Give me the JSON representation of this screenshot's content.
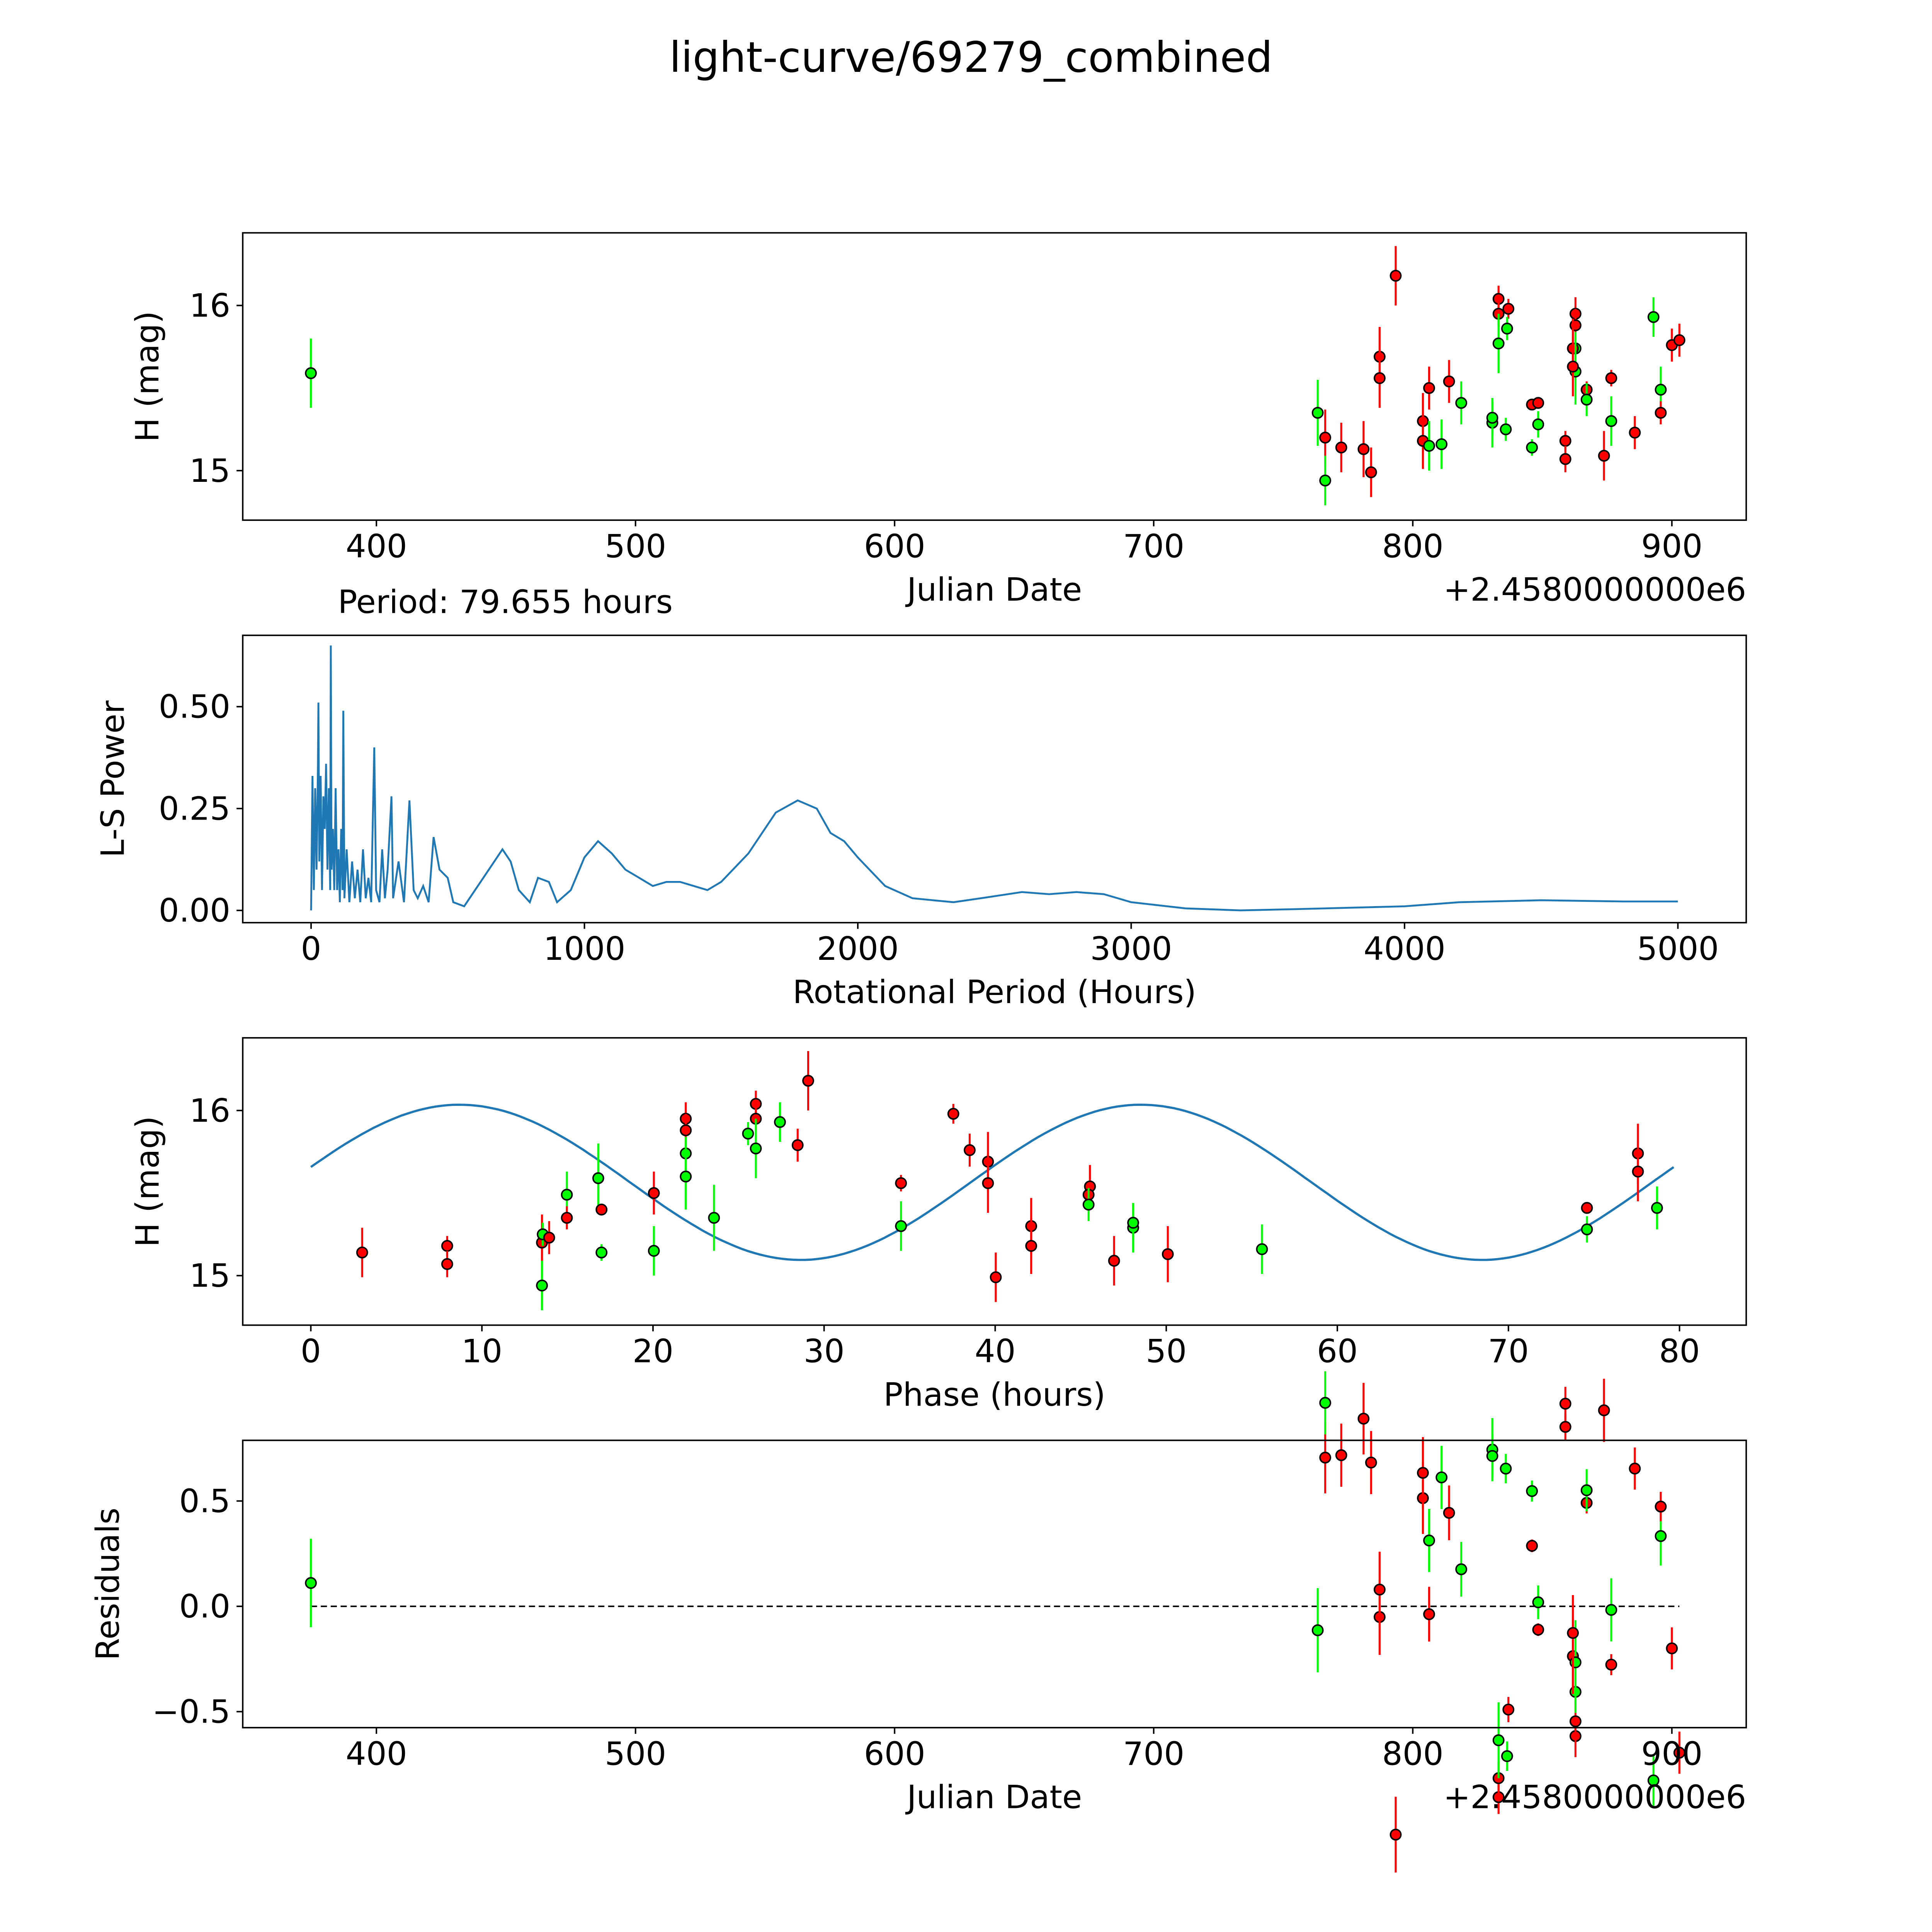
{
  "title": "light-curve/69279_combined",
  "colors": {
    "filter_a": "#00ff00",
    "filter_b": "#ff0000",
    "model": "#1f77b4",
    "periodogram": "#1f77b4"
  },
  "period_hours": 79.655,
  "model": {
    "mean": 15.565,
    "amplitude": 0.47,
    "peak_phase": 8.7,
    "harmonic_period": 39.83
  },
  "chart_data": [
    {
      "type": "scatter",
      "name": "light-curve",
      "xlabel": "Julian Date",
      "ylabel": "H (mag)",
      "offset_label": "+2.4580000000e6",
      "xlim": [
        348.4,
        928.7
      ],
      "ylim": [
        14.7,
        16.44
      ],
      "xticks": [
        400,
        500,
        600,
        700,
        800,
        900
      ],
      "yticks": [
        15,
        16
      ],
      "points": [
        [
          374.7,
          15.59,
          0.21,
          "g"
        ],
        [
          763.3,
          15.35,
          0.2,
          "g"
        ],
        [
          766.2,
          15.2,
          0.17,
          "r"
        ],
        [
          766.2,
          14.94,
          0.15,
          "g"
        ],
        [
          772.4,
          15.14,
          0.15,
          "r"
        ],
        [
          781.0,
          15.13,
          0.17,
          "r"
        ],
        [
          783.9,
          14.99,
          0.15,
          "r"
        ],
        [
          787.2,
          15.69,
          0.18,
          "r"
        ],
        [
          787.2,
          15.56,
          0.18,
          "r"
        ],
        [
          793.4,
          16.18,
          0.18,
          "r"
        ],
        [
          803.9,
          15.3,
          0.17,
          "r"
        ],
        [
          803.9,
          15.18,
          0.17,
          "r"
        ],
        [
          806.3,
          15.15,
          0.15,
          "g"
        ],
        [
          806.3,
          15.5,
          0.13,
          "r"
        ],
        [
          811.1,
          15.16,
          0.15,
          "g"
        ],
        [
          814.0,
          15.54,
          0.13,
          "r"
        ],
        [
          818.7,
          15.41,
          0.13,
          "g"
        ],
        [
          830.7,
          15.29,
          0.15,
          "g"
        ],
        [
          830.7,
          15.32,
          0.1,
          "g"
        ],
        [
          833.1,
          16.04,
          0.08,
          "r"
        ],
        [
          833.1,
          15.95,
          0.08,
          "r"
        ],
        [
          833.1,
          15.77,
          0.18,
          "g"
        ],
        [
          836.9,
          15.98,
          0.06,
          "r"
        ],
        [
          836.4,
          15.86,
          0.07,
          "g"
        ],
        [
          835.9,
          15.25,
          0.07,
          "g"
        ],
        [
          846.0,
          15.4,
          0.03,
          "r"
        ],
        [
          848.4,
          15.41,
          0.03,
          "r"
        ],
        [
          848.4,
          15.28,
          0.08,
          "g"
        ],
        [
          846.0,
          15.14,
          0.05,
          "g"
        ],
        [
          858.9,
          15.18,
          0.06,
          "r"
        ],
        [
          858.9,
          15.07,
          0.08,
          "r"
        ],
        [
          862.8,
          15.95,
          0.1,
          "r"
        ],
        [
          862.8,
          15.88,
          0.1,
          "r"
        ],
        [
          862.8,
          15.74,
          0.1,
          "g"
        ],
        [
          861.8,
          15.74,
          0.18,
          "r"
        ],
        [
          862.8,
          15.6,
          0.2,
          "g"
        ],
        [
          861.8,
          15.63,
          0.18,
          "r"
        ],
        [
          867.1,
          15.49,
          0.05,
          "r"
        ],
        [
          867.1,
          15.43,
          0.1,
          "g"
        ],
        [
          873.8,
          15.09,
          0.15,
          "r"
        ],
        [
          876.6,
          15.3,
          0.15,
          "g"
        ],
        [
          876.6,
          15.56,
          0.05,
          "r"
        ],
        [
          885.7,
          15.23,
          0.1,
          "r"
        ],
        [
          892.9,
          15.93,
          0.12,
          "g"
        ],
        [
          895.7,
          15.49,
          0.14,
          "g"
        ],
        [
          895.7,
          15.35,
          0.07,
          "r"
        ],
        [
          900.0,
          15.76,
          0.1,
          "r"
        ],
        [
          902.9,
          15.79,
          0.1,
          "r"
        ]
      ]
    },
    {
      "type": "line",
      "name": "periodogram",
      "annotation": "Period: 79.655 hours",
      "xlabel": "Rotational Period (Hours)",
      "ylabel": "L-S Power",
      "xlim": [
        -250,
        5250
      ],
      "ylim": [
        -0.03,
        0.675
      ],
      "xticks": [
        0,
        1000,
        2000,
        3000,
        4000,
        5000
      ],
      "yticks": [
        "0.00",
        "0.25",
        "0.50"
      ],
      "x": [
        0,
        5,
        10,
        15,
        20,
        25,
        27,
        30,
        35,
        40,
        45,
        50,
        55,
        60,
        65,
        70,
        72,
        75,
        79.7,
        85,
        90,
        95,
        100,
        105,
        110,
        115,
        118,
        122,
        130,
        140,
        150,
        160,
        170,
        180,
        190,
        200,
        210,
        220,
        231,
        238,
        250,
        260,
        270,
        280,
        294,
        300,
        320,
        340,
        360,
        375,
        390,
        410,
        430,
        448,
        470,
        500,
        520,
        560,
        600,
        650,
        700,
        730,
        760,
        800,
        830,
        870,
        900,
        950,
        1000,
        1050,
        1100,
        1150,
        1200,
        1250,
        1300,
        1350,
        1400,
        1450,
        1500,
        1600,
        1700,
        1780,
        1850,
        1900,
        1950,
        2000,
        2100,
        2200,
        2350,
        2450,
        2600,
        2700,
        2800,
        2900,
        3000,
        3200,
        3400,
        3600,
        4000,
        4200,
        4500,
        4800,
        5000
      ],
      "y": [
        0,
        0.33,
        0.05,
        0.3,
        0.1,
        0.35,
        0.51,
        0.12,
        0.33,
        0.05,
        0.28,
        0.2,
        0.36,
        0.1,
        0.3,
        0.05,
        0.65,
        0.1,
        0.2,
        0.05,
        0.3,
        0.05,
        0.15,
        0.02,
        0.2,
        0.05,
        0.49,
        0.03,
        0.15,
        0.02,
        0.12,
        0.03,
        0.1,
        0.02,
        0.15,
        0.03,
        0.08,
        0.02,
        0.4,
        0.05,
        0.02,
        0.15,
        0.03,
        0.1,
        0.28,
        0.03,
        0.12,
        0.02,
        0.27,
        0.05,
        0.03,
        0.06,
        0.02,
        0.18,
        0.1,
        0.08,
        0.02,
        0.01,
        0.05,
        0.1,
        0.15,
        0.12,
        0.05,
        0.02,
        0.08,
        0.07,
        0.02,
        0.05,
        0.13,
        0.17,
        0.14,
        0.1,
        0.08,
        0.06,
        0.07,
        0.07,
        0.06,
        0.05,
        0.07,
        0.14,
        0.24,
        0.27,
        0.25,
        0.19,
        0.17,
        0.13,
        0.06,
        0.03,
        0.02,
        0.03,
        0.045,
        0.04,
        0.045,
        0.04,
        0.02,
        0.005,
        0,
        0.003,
        0.01,
        0.02,
        0.025,
        0.022,
        0.022
      ]
    },
    {
      "type": "scatter",
      "name": "phased-light-curve",
      "xlabel": "Phase (hours)",
      "ylabel": "H (mag)",
      "xlim": [
        -3.98,
        83.9
      ],
      "ylim": [
        14.7,
        16.44
      ],
      "xticks": [
        0,
        10,
        20,
        30,
        40,
        50,
        60,
        70,
        80
      ],
      "yticks": [
        15,
        16
      ],
      "phase_zero_jd": 374.0
    },
    {
      "type": "scatter",
      "name": "residuals",
      "xlabel": "Julian Date",
      "ylabel": "Residuals",
      "offset_label": "+2.4580000000e6",
      "xlim": [
        348.4,
        928.7
      ],
      "ylim": [
        -0.576,
        0.788
      ],
      "xticks": [
        400,
        500,
        600,
        700,
        800,
        900
      ],
      "yticks": [
        "−0.5",
        "0.0",
        "0.5"
      ],
      "ytick_values": [
        -0.5,
        0,
        0.5
      ]
    }
  ]
}
